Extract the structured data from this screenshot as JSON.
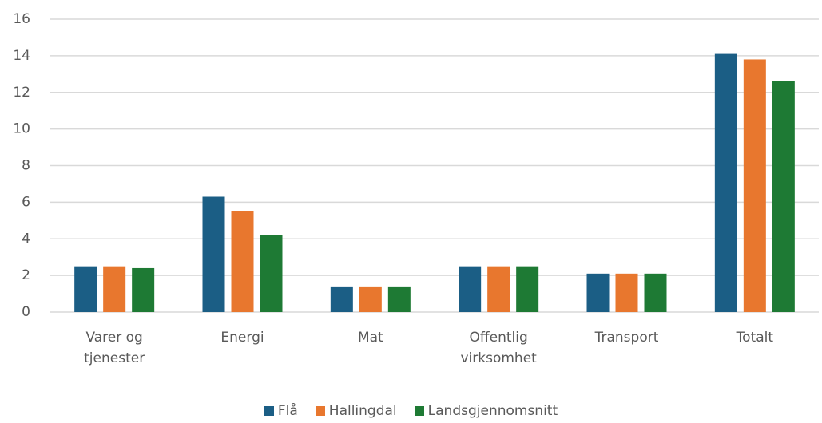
{
  "chart_data": {
    "type": "bar",
    "categories": [
      "Varer og tjenester",
      "Energi",
      "Mat",
      "Offentlig virksomhet",
      "Transport",
      "Totalt"
    ],
    "series": [
      {
        "name": "Flå",
        "color": "#1b5e85",
        "values": [
          2.5,
          6.3,
          1.4,
          2.5,
          2.1,
          14.1
        ]
      },
      {
        "name": "Hallingdal",
        "color": "#e8772e",
        "values": [
          2.5,
          5.5,
          1.4,
          2.5,
          2.1,
          13.8
        ]
      },
      {
        "name": "Landsgjennomsnitt",
        "color": "#1e7a34",
        "values": [
          2.4,
          4.2,
          1.4,
          2.5,
          2.1,
          12.6
        ]
      }
    ],
    "ylim": [
      0,
      16
    ],
    "yticks": [
      0,
      2,
      4,
      6,
      8,
      10,
      12,
      14,
      16
    ],
    "grid": true,
    "legend": "bottom"
  }
}
